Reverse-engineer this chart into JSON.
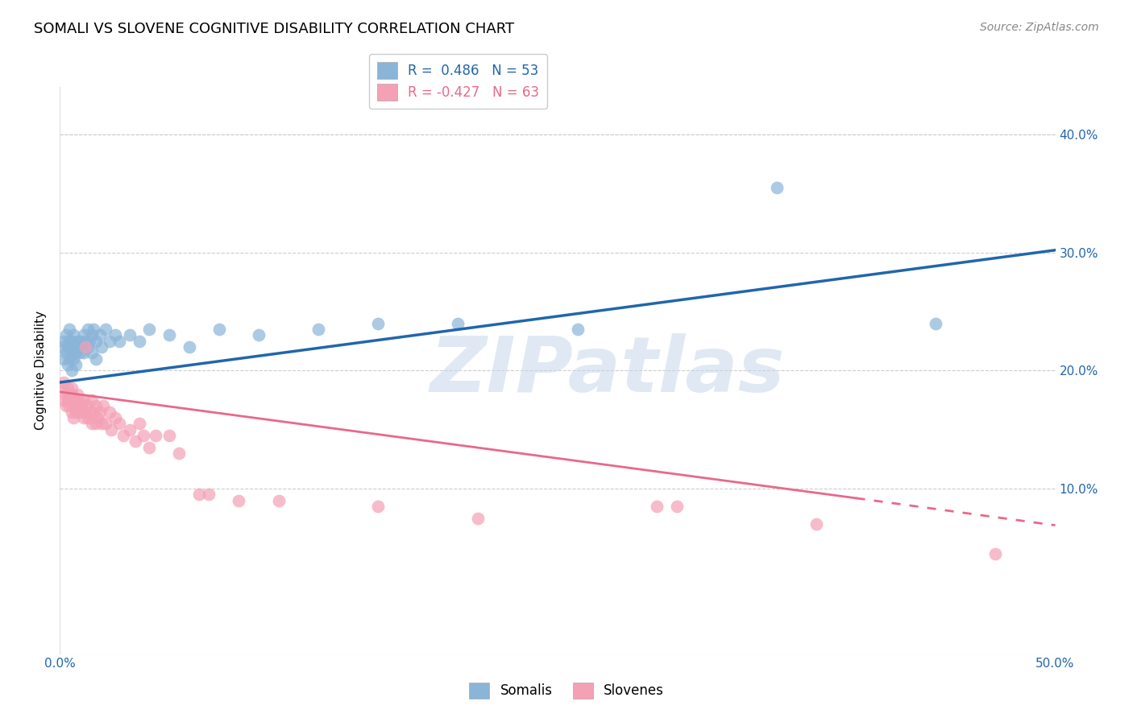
{
  "title": "SOMALI VS SLOVENE COGNITIVE DISABILITY CORRELATION CHART",
  "source": "Source: ZipAtlas.com",
  "ylabel": "Cognitive Disability",
  "ytick_vals": [
    0.1,
    0.2,
    0.3,
    0.4
  ],
  "ytick_labels": [
    "10.0%",
    "20.0%",
    "30.0%",
    "40.0%"
  ],
  "xlim": [
    0.0,
    0.5
  ],
  "ylim": [
    -0.04,
    0.44
  ],
  "watermark": "ZIPatlas",
  "legend_somali_R": "0.486",
  "legend_somali_N": "53",
  "legend_slovene_R": "-0.427",
  "legend_slovene_N": "63",
  "somali_color": "#8ab4d8",
  "slovene_color": "#f4a0b5",
  "somali_line_color": "#2166ac",
  "slovene_line_color": "#e8698a",
  "somali_scatter": [
    [
      0.001,
      0.22
    ],
    [
      0.002,
      0.21
    ],
    [
      0.002,
      0.225
    ],
    [
      0.003,
      0.215
    ],
    [
      0.003,
      0.23
    ],
    [
      0.004,
      0.205
    ],
    [
      0.004,
      0.22
    ],
    [
      0.005,
      0.21
    ],
    [
      0.005,
      0.225
    ],
    [
      0.005,
      0.235
    ],
    [
      0.006,
      0.2
    ],
    [
      0.006,
      0.215
    ],
    [
      0.006,
      0.225
    ],
    [
      0.007,
      0.21
    ],
    [
      0.007,
      0.22
    ],
    [
      0.007,
      0.23
    ],
    [
      0.008,
      0.205
    ],
    [
      0.008,
      0.215
    ],
    [
      0.009,
      0.22
    ],
    [
      0.009,
      0.225
    ],
    [
      0.01,
      0.215
    ],
    [
      0.01,
      0.225
    ],
    [
      0.011,
      0.22
    ],
    [
      0.012,
      0.23
    ],
    [
      0.012,
      0.215
    ],
    [
      0.013,
      0.225
    ],
    [
      0.014,
      0.235
    ],
    [
      0.014,
      0.22
    ],
    [
      0.015,
      0.225
    ],
    [
      0.016,
      0.23
    ],
    [
      0.016,
      0.215
    ],
    [
      0.017,
      0.235
    ],
    [
      0.018,
      0.225
    ],
    [
      0.018,
      0.21
    ],
    [
      0.02,
      0.23
    ],
    [
      0.021,
      0.22
    ],
    [
      0.023,
      0.235
    ],
    [
      0.025,
      0.225
    ],
    [
      0.028,
      0.23
    ],
    [
      0.03,
      0.225
    ],
    [
      0.035,
      0.23
    ],
    [
      0.04,
      0.225
    ],
    [
      0.045,
      0.235
    ],
    [
      0.055,
      0.23
    ],
    [
      0.065,
      0.22
    ],
    [
      0.08,
      0.235
    ],
    [
      0.1,
      0.23
    ],
    [
      0.13,
      0.235
    ],
    [
      0.16,
      0.24
    ],
    [
      0.2,
      0.24
    ],
    [
      0.26,
      0.235
    ],
    [
      0.36,
      0.355
    ],
    [
      0.44,
      0.24
    ]
  ],
  "slovene_scatter": [
    [
      0.001,
      0.185
    ],
    [
      0.002,
      0.175
    ],
    [
      0.002,
      0.19
    ],
    [
      0.003,
      0.17
    ],
    [
      0.003,
      0.18
    ],
    [
      0.004,
      0.175
    ],
    [
      0.004,
      0.185
    ],
    [
      0.005,
      0.17
    ],
    [
      0.005,
      0.18
    ],
    [
      0.005,
      0.175
    ],
    [
      0.006,
      0.165
    ],
    [
      0.006,
      0.18
    ],
    [
      0.006,
      0.185
    ],
    [
      0.007,
      0.17
    ],
    [
      0.007,
      0.175
    ],
    [
      0.007,
      0.16
    ],
    [
      0.008,
      0.175
    ],
    [
      0.008,
      0.165
    ],
    [
      0.009,
      0.17
    ],
    [
      0.009,
      0.18
    ],
    [
      0.01,
      0.165
    ],
    [
      0.01,
      0.175
    ],
    [
      0.011,
      0.17
    ],
    [
      0.012,
      0.16
    ],
    [
      0.012,
      0.175
    ],
    [
      0.013,
      0.165
    ],
    [
      0.013,
      0.22
    ],
    [
      0.014,
      0.17
    ],
    [
      0.014,
      0.16
    ],
    [
      0.015,
      0.165
    ],
    [
      0.016,
      0.175
    ],
    [
      0.016,
      0.155
    ],
    [
      0.017,
      0.165
    ],
    [
      0.018,
      0.17
    ],
    [
      0.018,
      0.155
    ],
    [
      0.019,
      0.16
    ],
    [
      0.02,
      0.165
    ],
    [
      0.021,
      0.155
    ],
    [
      0.022,
      0.17
    ],
    [
      0.023,
      0.155
    ],
    [
      0.025,
      0.165
    ],
    [
      0.026,
      0.15
    ],
    [
      0.028,
      0.16
    ],
    [
      0.03,
      0.155
    ],
    [
      0.032,
      0.145
    ],
    [
      0.035,
      0.15
    ],
    [
      0.038,
      0.14
    ],
    [
      0.04,
      0.155
    ],
    [
      0.042,
      0.145
    ],
    [
      0.045,
      0.135
    ],
    [
      0.048,
      0.145
    ],
    [
      0.055,
      0.145
    ],
    [
      0.06,
      0.13
    ],
    [
      0.07,
      0.095
    ],
    [
      0.075,
      0.095
    ],
    [
      0.09,
      0.09
    ],
    [
      0.11,
      0.09
    ],
    [
      0.16,
      0.085
    ],
    [
      0.21,
      0.075
    ],
    [
      0.3,
      0.085
    ],
    [
      0.31,
      0.085
    ],
    [
      0.38,
      0.07
    ],
    [
      0.47,
      0.045
    ]
  ],
  "somali_trendline": [
    [
      0.0,
      0.19
    ],
    [
      0.5,
      0.302
    ]
  ],
  "slovene_trendline_solid": [
    [
      0.0,
      0.182
    ],
    [
      0.4,
      0.092
    ]
  ],
  "slovene_trendline_dashed": [
    [
      0.4,
      0.092
    ],
    [
      0.5,
      0.069
    ]
  ]
}
